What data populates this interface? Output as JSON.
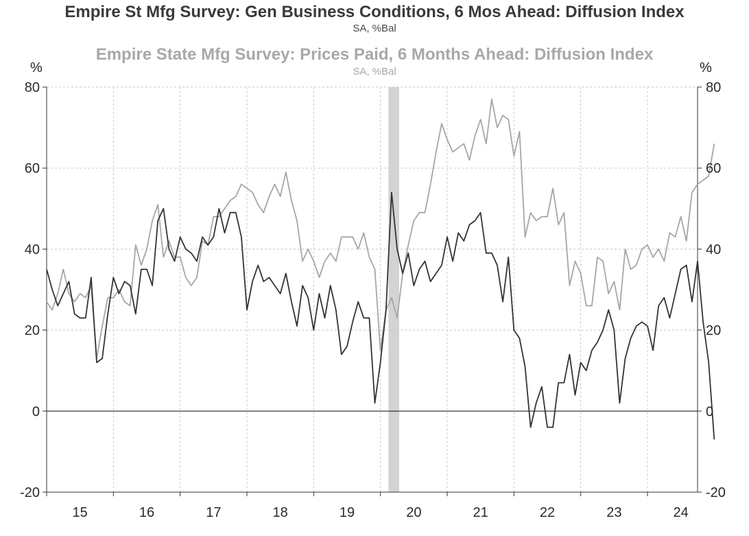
{
  "chart_data": {
    "type": "line",
    "title": "Empire St Mfg Survey: Gen Business Conditions, 6 Mos Ahead: Diffusion Index",
    "subtitle": "SA, %Bal",
    "title2": "Empire State Mfg Survey: Prices Paid, 6 Months Ahead: Diffusion Index",
    "subtitle2": "SA, %Bal",
    "left_unit": "%",
    "right_unit": "%",
    "ylim": [
      -20,
      80
    ],
    "yticks": [
      80,
      60,
      40,
      20,
      0,
      -20
    ],
    "ytick_labels": [
      "80",
      "60",
      "40",
      "20",
      "0",
      "-20"
    ],
    "xlim": [
      2015.0,
      2024.75
    ],
    "x_tick_labels": [
      "15",
      "16",
      "17",
      "18",
      "19",
      "20",
      "21",
      "22",
      "23",
      "24"
    ],
    "grid": true,
    "legend": "none",
    "recession_shading": [
      2020.12,
      2020.28
    ],
    "colors": {
      "business": "#333333",
      "prices": "#a6a6a6",
      "recession": "#d3d3d3",
      "grid": "#c8c8c8"
    },
    "series": [
      {
        "start": 2015.0,
        "step": 0.08333,
        "values": [
          35,
          30,
          26,
          29,
          32,
          24,
          23,
          23,
          33,
          12,
          13,
          24,
          33,
          29,
          32,
          31,
          24,
          35,
          35,
          31,
          47,
          50,
          40,
          37,
          43,
          40,
          39,
          37,
          43,
          41,
          43,
          50,
          44,
          49,
          49,
          43,
          25,
          32,
          36,
          32,
          33,
          31,
          29,
          34,
          27,
          21,
          31,
          28,
          20,
          29,
          23,
          31,
          25,
          14,
          16,
          22,
          27,
          23,
          23,
          2,
          12,
          25,
          54,
          40,
          34,
          39,
          31,
          35,
          37,
          32,
          34,
          36,
          43,
          37,
          44,
          42,
          46,
          47,
          49,
          39,
          39,
          36,
          27,
          38,
          20,
          18,
          11,
          -4,
          2,
          6,
          -4,
          -4,
          7,
          7,
          14,
          4,
          12,
          10,
          15,
          17,
          20,
          25,
          20,
          2,
          13,
          18,
          21,
          22,
          21,
          15,
          26,
          28,
          23,
          29,
          35,
          36,
          27,
          37,
          22,
          12,
          -7
        ]
      },
      {
        "start": 2015.0,
        "step": 0.08333,
        "values": [
          27,
          25,
          29,
          35,
          29,
          27,
          29,
          28,
          31,
          13,
          21,
          28,
          28,
          30,
          27,
          26,
          41,
          36,
          40,
          47,
          51,
          38,
          42,
          38,
          38,
          33,
          31,
          33,
          42,
          41,
          48,
          48,
          50,
          52,
          53,
          56,
          55,
          54,
          51,
          49,
          53,
          56,
          53,
          59,
          52,
          47,
          37,
          40,
          37,
          33,
          37,
          39,
          37,
          43,
          43,
          43,
          40,
          44,
          38,
          35,
          15,
          25,
          28,
          23,
          34,
          41,
          47,
          49,
          49,
          56,
          64,
          71,
          67,
          64,
          65,
          66,
          62,
          68,
          72,
          66,
          77,
          70,
          73,
          72,
          63,
          69,
          43,
          49,
          47,
          48,
          48,
          55,
          46,
          49,
          31,
          37,
          34,
          26,
          26,
          38,
          37,
          29,
          32,
          25,
          40,
          35,
          36,
          40,
          41,
          38,
          40,
          37,
          44,
          43,
          48,
          42,
          54,
          56,
          57,
          58,
          66
        ]
      }
    ]
  }
}
